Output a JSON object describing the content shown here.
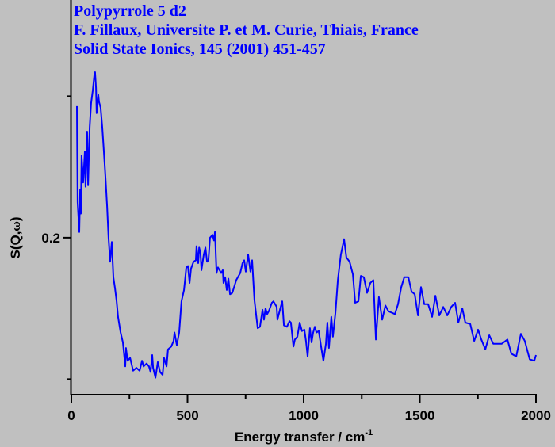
{
  "chart_data": {
    "type": "line",
    "title_lines": [
      "Polypyrrole 5 d2",
      "F. Fillaux, Universite P. et M. Curie, Thiais, France",
      "Solid State Ionics, 145 (2001) 451-457"
    ],
    "xlabel": "Energy transfer / cm",
    "xlabel_superscript": "-1",
    "ylabel": "S(Q,",
    "ylabel_omega": "ω",
    "ylabel_close": ")",
    "xlim": [
      0,
      2000
    ],
    "ylim": [
      0.089,
      0.368
    ],
    "x_ticks": [
      0,
      500,
      1000,
      1500,
      2000
    ],
    "x_tick_labels": [
      "0",
      "500",
      "1000",
      "1500",
      "2000"
    ],
    "x_minor_ticks": [
      250,
      750,
      1250,
      1750
    ],
    "y_ticks": [
      0.2
    ],
    "y_tick_labels": [
      "0.2"
    ],
    "y_minor_ticks": [
      0.1,
      0.3
    ],
    "grid": false,
    "line_color": "#0000ff",
    "title_color": "#0000ff",
    "background": "#c0c0c0",
    "series": [
      {
        "x": [
          24,
          25,
          27,
          34,
          38,
          41,
          44,
          51,
          58,
          61,
          68,
          72,
          79,
          85,
          92,
          99,
          102,
          106,
          109,
          116,
          119,
          126,
          133,
          140,
          147,
          154,
          160,
          167,
          174,
          181,
          188,
          195,
          201,
          212,
          222,
          232,
          235,
          242,
          253,
          266,
          280,
          294,
          304,
          311,
          324,
          334,
          341,
          348,
          352,
          362,
          372,
          382,
          393,
          399,
          410,
          416,
          430,
          440,
          444,
          454,
          464,
          474,
          485,
          495,
          502,
          509,
          515,
          526,
          536,
          539,
          546,
          550,
          556,
          560,
          570,
          577,
          584,
          590,
          597,
          608,
          614,
          618,
          625,
          631,
          645,
          652,
          655,
          662,
          669,
          676,
          683,
          693,
          710,
          727,
          737,
          744,
          751,
          761,
          771,
          778,
          788,
          802,
          812,
          823,
          829,
          836,
          843,
          850,
          863,
          870,
          884,
          887,
          901,
          908,
          915,
          928,
          939,
          945,
          956,
          962,
          973,
          983,
          993,
          1003,
          1010,
          1017,
          1027,
          1034,
          1041,
          1048,
          1055,
          1065,
          1075,
          1085,
          1096,
          1102,
          1109,
          1119,
          1126,
          1137,
          1147,
          1160,
          1174,
          1184,
          1198,
          1212,
          1222,
          1236,
          1246,
          1259,
          1273,
          1287,
          1300,
          1311,
          1324,
          1338,
          1352,
          1365,
          1379,
          1393,
          1406,
          1420,
          1433,
          1451,
          1464,
          1478,
          1492,
          1505,
          1519,
          1536,
          1553,
          1567,
          1584,
          1601,
          1618,
          1635,
          1652,
          1666,
          1683,
          1696,
          1717,
          1734,
          1751,
          1765,
          1782,
          1799,
          1816,
          1833,
          1853,
          1877,
          1894,
          1915,
          1935,
          1952,
          1973,
          1993,
          2000
        ],
        "y": [
          0.293,
          0.269,
          0.225,
          0.204,
          0.234,
          0.217,
          0.258,
          0.239,
          0.261,
          0.236,
          0.275,
          0.237,
          0.278,
          0.295,
          0.304,
          0.315,
          0.317,
          0.306,
          0.288,
          0.301,
          0.296,
          0.292,
          0.278,
          0.261,
          0.242,
          0.222,
          0.2,
          0.183,
          0.197,
          0.172,
          0.164,
          0.155,
          0.144,
          0.133,
          0.126,
          0.109,
          0.122,
          0.113,
          0.115,
          0.106,
          0.108,
          0.106,
          0.113,
          0.109,
          0.111,
          0.109,
          0.105,
          0.117,
          0.108,
          0.101,
          0.112,
          0.105,
          0.103,
          0.115,
          0.109,
          0.121,
          0.123,
          0.127,
          0.133,
          0.124,
          0.133,
          0.155,
          0.163,
          0.179,
          0.18,
          0.168,
          0.178,
          0.183,
          0.184,
          0.194,
          0.182,
          0.193,
          0.189,
          0.177,
          0.188,
          0.193,
          0.183,
          0.184,
          0.2,
          0.202,
          0.198,
          0.204,
          0.175,
          0.179,
          0.175,
          0.177,
          0.168,
          0.172,
          0.163,
          0.171,
          0.16,
          0.161,
          0.17,
          0.175,
          0.182,
          0.184,
          0.176,
          0.188,
          0.176,
          0.184,
          0.156,
          0.136,
          0.137,
          0.149,
          0.142,
          0.15,
          0.146,
          0.148,
          0.154,
          0.155,
          0.151,
          0.142,
          0.151,
          0.155,
          0.138,
          0.137,
          0.141,
          0.14,
          0.123,
          0.128,
          0.13,
          0.14,
          0.134,
          0.135,
          0.127,
          0.116,
          0.136,
          0.126,
          0.133,
          0.137,
          0.133,
          0.134,
          0.123,
          0.113,
          0.125,
          0.14,
          0.122,
          0.144,
          0.13,
          0.147,
          0.17,
          0.188,
          0.199,
          0.186,
          0.183,
          0.174,
          0.154,
          0.155,
          0.173,
          0.172,
          0.161,
          0.168,
          0.17,
          0.128,
          0.158,
          0.142,
          0.152,
          0.148,
          0.147,
          0.146,
          0.153,
          0.165,
          0.172,
          0.172,
          0.162,
          0.16,
          0.145,
          0.165,
          0.153,
          0.153,
          0.144,
          0.159,
          0.145,
          0.151,
          0.145,
          0.151,
          0.154,
          0.14,
          0.15,
          0.14,
          0.139,
          0.127,
          0.135,
          0.128,
          0.121,
          0.131,
          0.125,
          0.125,
          0.125,
          0.128,
          0.118,
          0.116,
          0.132,
          0.127,
          0.114,
          0.113,
          0.117
        ]
      }
    ]
  }
}
